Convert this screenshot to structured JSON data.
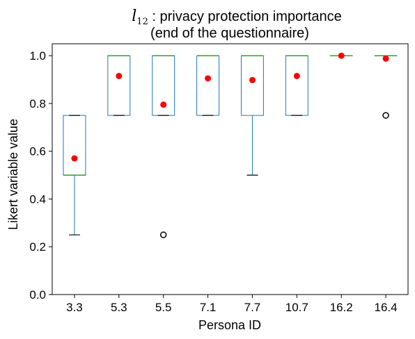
{
  "chart_data": {
    "type": "box",
    "title_symbol": "l",
    "title_subscript": "12",
    "title_line1": " : privacy protection importance",
    "title_line2": "(end of the questionnaire)",
    "xlabel": "Persona ID",
    "ylabel": "Likert variable value",
    "ylim": [
      0,
      1.05
    ],
    "yticks": [
      "0.0",
      "0.2",
      "0.4",
      "0.6",
      "0.8",
      "1.0"
    ],
    "grid": false,
    "colors": {
      "box": "#1f77b4",
      "median": "#2ca02c",
      "mean": "#ff0000",
      "whisker_cap": "#000000",
      "outlier": "#000000"
    },
    "categories": [
      "3.3",
      "5.3",
      "5.5",
      "7.1",
      "7.7",
      "10.7",
      "16.2",
      "16.4"
    ],
    "boxes": [
      {
        "whislo": 0.25,
        "q1": 0.5,
        "med": 0.5,
        "q3": 0.75,
        "whishi": 0.75,
        "mean": 0.57,
        "fliers": []
      },
      {
        "whislo": 0.75,
        "q1": 0.75,
        "med": 1.0,
        "q3": 1.0,
        "whishi": 1.0,
        "mean": 0.915,
        "fliers": []
      },
      {
        "whislo": 0.75,
        "q1": 0.75,
        "med": 1.0,
        "q3": 1.0,
        "whishi": 1.0,
        "mean": 0.795,
        "fliers": [
          0.25
        ]
      },
      {
        "whislo": 0.75,
        "q1": 0.75,
        "med": 1.0,
        "q3": 1.0,
        "whishi": 1.0,
        "mean": 0.905,
        "fliers": []
      },
      {
        "whislo": 0.5,
        "q1": 0.75,
        "med": 1.0,
        "q3": 1.0,
        "whishi": 1.0,
        "mean": 0.898,
        "fliers": []
      },
      {
        "whislo": 0.75,
        "q1": 0.75,
        "med": 1.0,
        "q3": 1.0,
        "whishi": 1.0,
        "mean": 0.915,
        "fliers": []
      },
      {
        "whislo": 1.0,
        "q1": 1.0,
        "med": 1.0,
        "q3": 1.0,
        "whishi": 1.0,
        "mean": 1.0,
        "fliers": []
      },
      {
        "whislo": 1.0,
        "q1": 1.0,
        "med": 1.0,
        "q3": 1.0,
        "whishi": 1.0,
        "mean": 0.988,
        "fliers": [
          0.75
        ]
      }
    ]
  }
}
